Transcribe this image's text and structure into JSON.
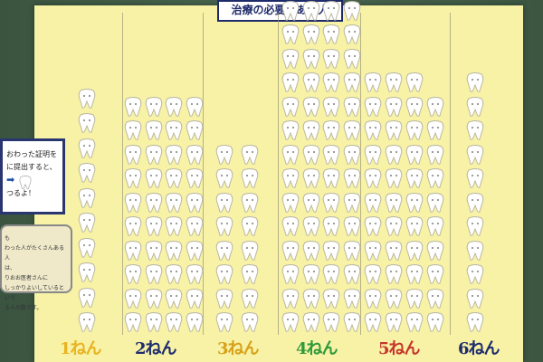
{
  "header": {
    "title": "治療の必要がある人"
  },
  "left_note": {
    "lines": [
      "おわった証明を",
      "に提出すると、",
      "",
      "つるよ！"
    ]
  },
  "side_note": {
    "lines": [
      "も",
      "わった人がたくさんある人",
      "は、",
      "りおお医者さんに",
      "しっかりよいしているという",
      "る人の数です。"
    ]
  },
  "grades": [
    {
      "label": "1ねん",
      "color": "#e8b321",
      "teeth": 10
    },
    {
      "label": "2ねん",
      "color": "#1f2c6e",
      "teeth": 40
    },
    {
      "label": "3ねん",
      "color": "#d7a11a",
      "teeth": 16
    },
    {
      "label": "4ねん",
      "color": "#2f9a3a",
      "teeth": 70
    },
    {
      "label": "5ねん",
      "color": "#c7352c",
      "teeth": 43
    },
    {
      "label": "6ねん",
      "color": "#1f2c6e",
      "teeth": 11
    }
  ]
}
